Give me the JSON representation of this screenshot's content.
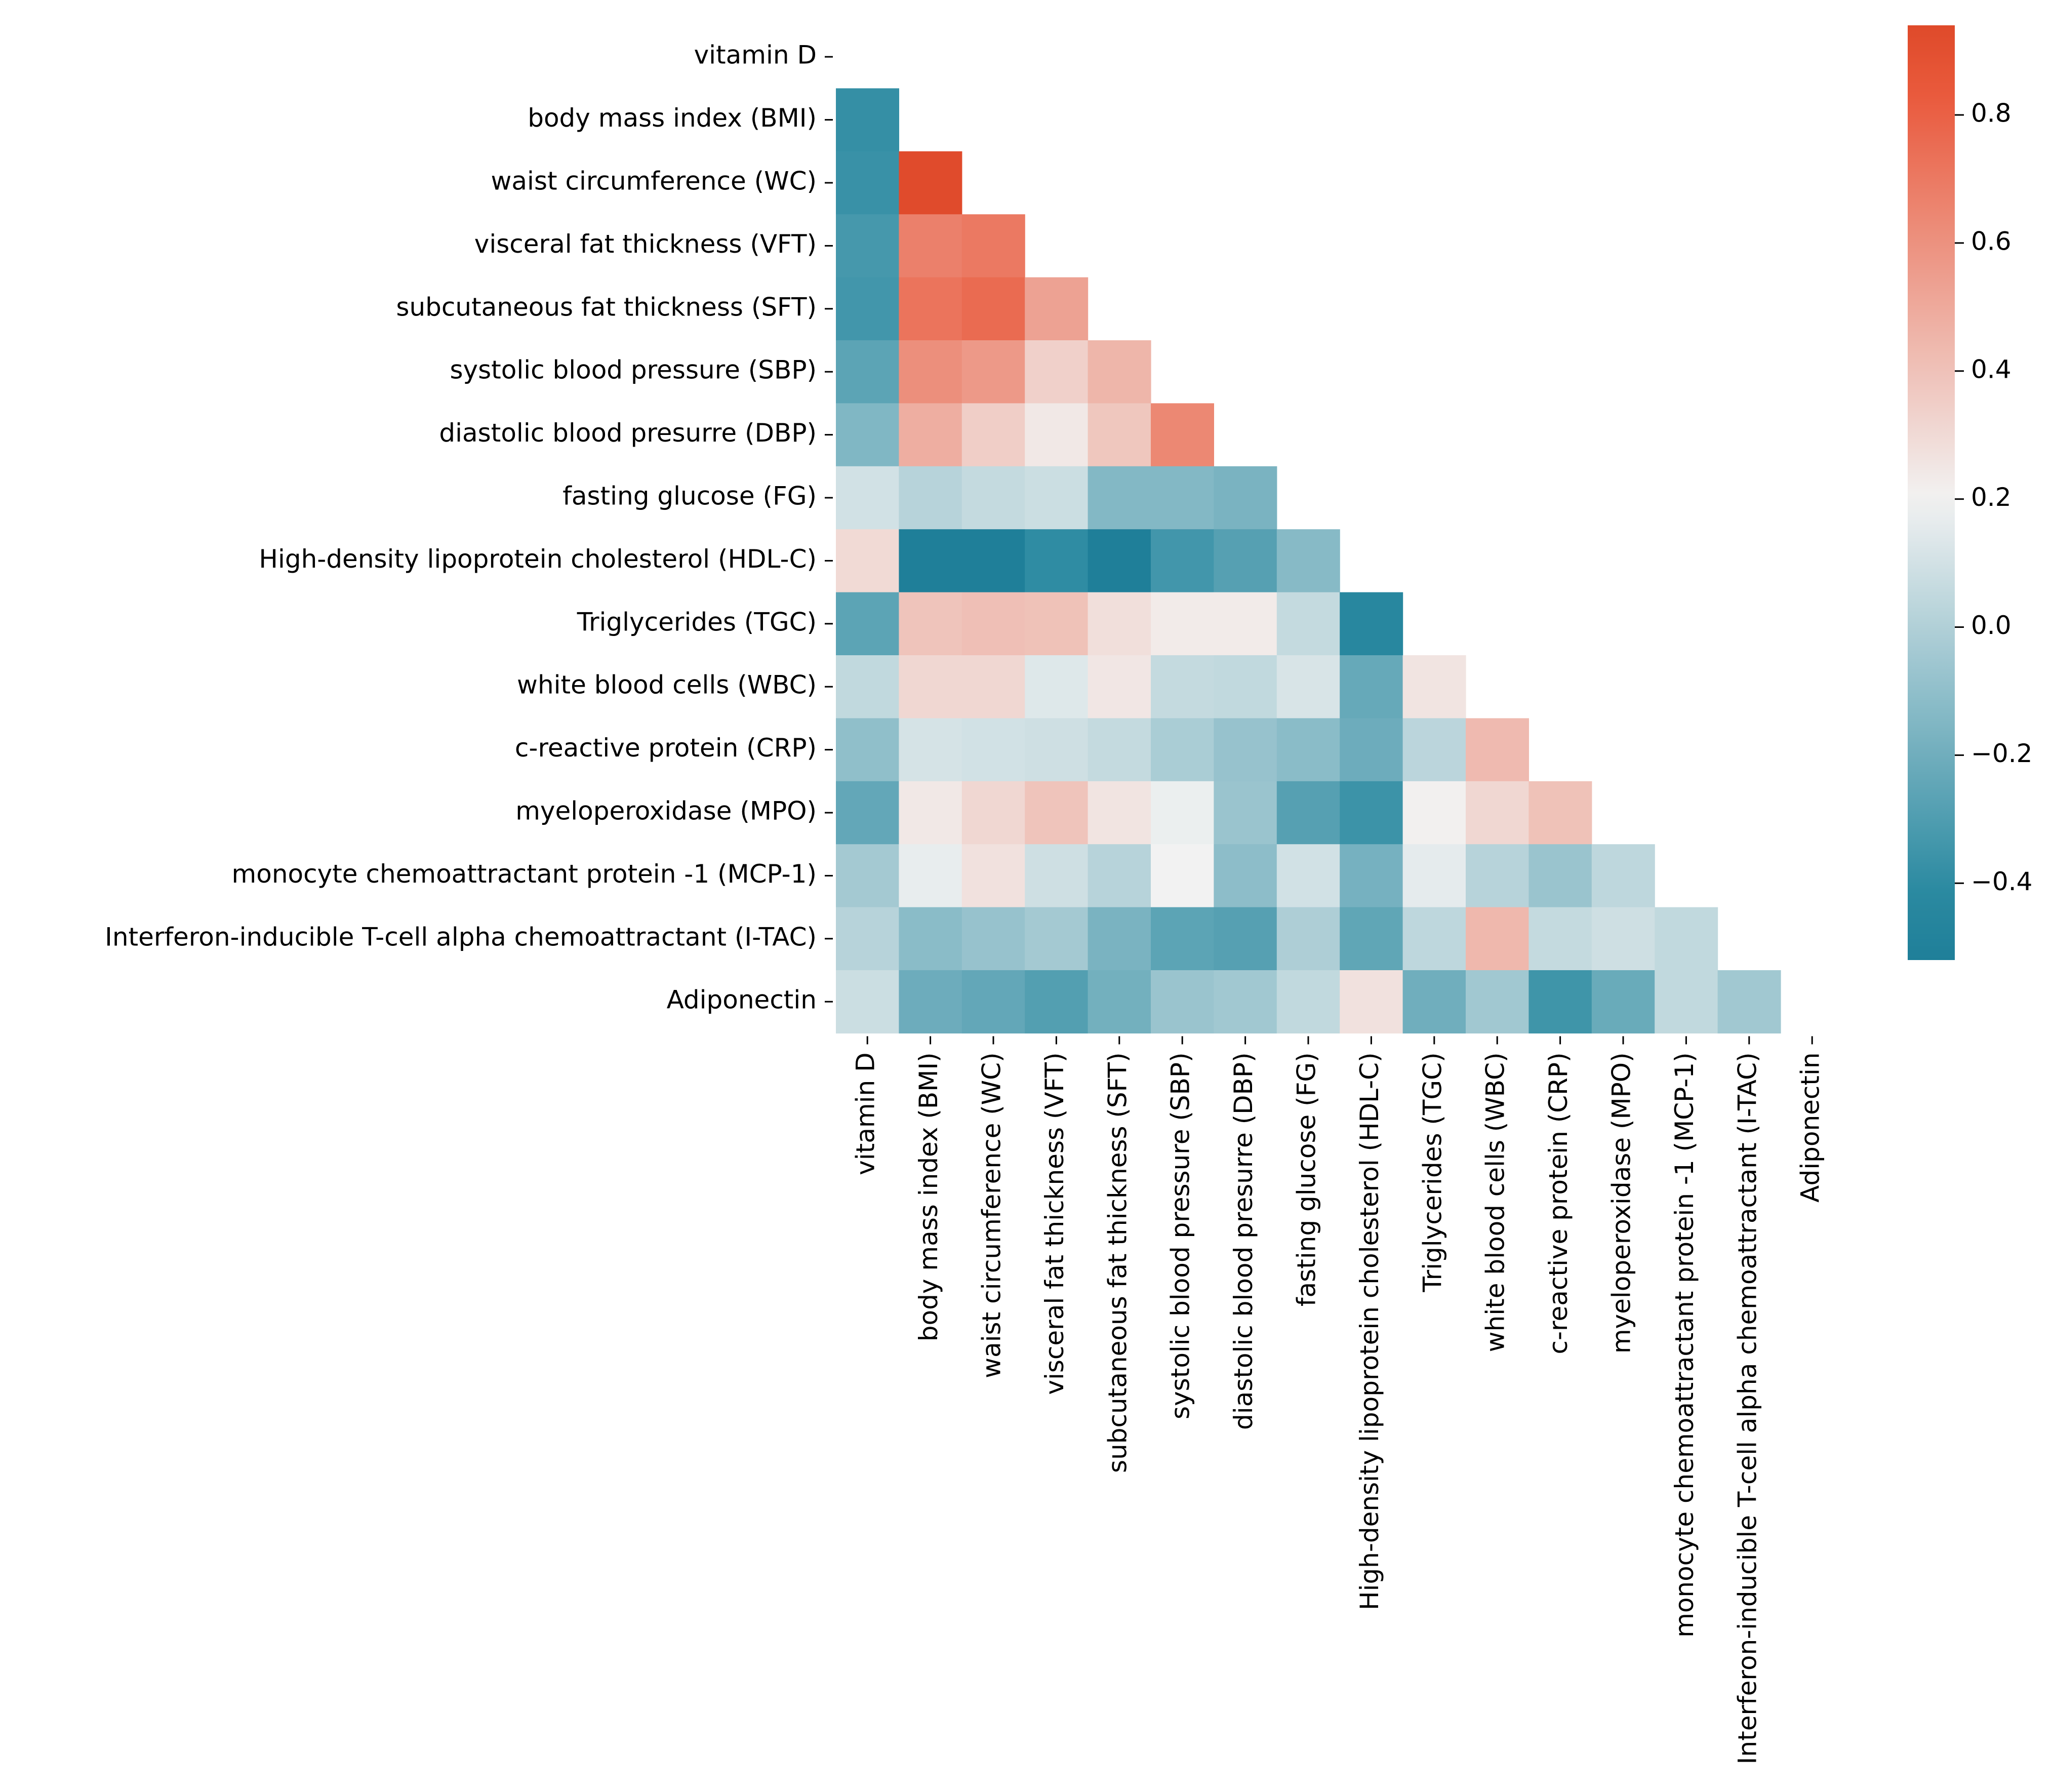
{
  "chart_data": {
    "type": "heatmap",
    "title": "",
    "xlabel": "",
    "ylabel": "",
    "mask": "upper-triangle-including-diagonal",
    "labels": [
      "vitamin D",
      "body mass index (BMI)",
      "waist circumference (WC)",
      "visceral fat thickness (VFT)",
      "subcutaneous fat thickness (SFT)",
      "systolic blood pressure (SBP)",
      "diastolic blood presurre (DBP)",
      "fasting glucose (FG)",
      "High-density lipoprotein cholesterol (HDL-C)",
      "Triglycerides (TGC)",
      "white blood cells (WBC)",
      "c-reactive protein (CRP)",
      "myeloperoxidase (MPO)",
      "monocyte chemoattractant protein -1 (MCP-1)",
      "Interferon-inducible T-cell alpha chemoattractant (I-TAC)",
      "Adiponectin"
    ],
    "values": [
      [],
      [
        -0.38
      ],
      [
        -0.37,
        0.93
      ],
      [
        -0.33,
        0.67,
        0.7
      ],
      [
        -0.34,
        0.72,
        0.76,
        0.53
      ],
      [
        -0.26,
        0.61,
        0.57,
        0.34,
        0.45
      ],
      [
        -0.15,
        0.48,
        0.35,
        0.24,
        0.38,
        0.64
      ],
      [
        0.1,
        0.02,
        0.06,
        0.08,
        -0.14,
        -0.14,
        -0.17
      ],
      [
        0.3,
        -0.52,
        -0.52,
        -0.4,
        -0.52,
        -0.34,
        -0.28,
        -0.13
      ],
      [
        -0.26,
        0.39,
        0.41,
        0.4,
        0.28,
        0.23,
        0.23,
        0.06,
        -0.44
      ],
      [
        0.05,
        0.31,
        0.31,
        0.14,
        0.25,
        0.06,
        0.05,
        0.12,
        -0.23,
        0.26
      ],
      [
        -0.1,
        0.11,
        0.1,
        0.09,
        0.06,
        -0.02,
        -0.08,
        -0.12,
        -0.21,
        0.03,
        0.43
      ],
      [
        -0.24,
        0.24,
        0.31,
        0.39,
        0.26,
        0.18,
        -0.07,
        -0.28,
        -0.36,
        0.21,
        0.31,
        0.4
      ],
      [
        -0.04,
        0.17,
        0.27,
        0.09,
        0.02,
        0.2,
        -0.11,
        0.1,
        -0.18,
        0.16,
        0.02,
        -0.07,
        0.04
      ],
      [
        0.02,
        -0.12,
        -0.08,
        -0.04,
        -0.17,
        -0.26,
        -0.28,
        -0.01,
        -0.25,
        0.04,
        0.44,
        0.06,
        0.09,
        0.05
      ],
      [
        0.08,
        -0.21,
        -0.24,
        -0.29,
        -0.19,
        -0.07,
        -0.05,
        0.05,
        0.27,
        -0.2,
        -0.05,
        -0.35,
        -0.22,
        0.05,
        -0.05
      ]
    ],
    "colorbar": {
      "min": -0.52,
      "max": 0.94,
      "ticks": [
        0.8,
        0.6,
        0.4,
        0.2,
        0.0,
        -0.2,
        -0.4
      ],
      "tick_labels": [
        "0.8",
        "0.6",
        "0.4",
        "0.2",
        "0.0",
        "−0.2",
        "−0.4"
      ],
      "colors": {
        "low": "#2b8aa1",
        "low_extreme": "#1f7f99",
        "mid": "#f2f2f2",
        "high": "#e95a3d",
        "high_extreme": "#df4a2a"
      }
    }
  }
}
